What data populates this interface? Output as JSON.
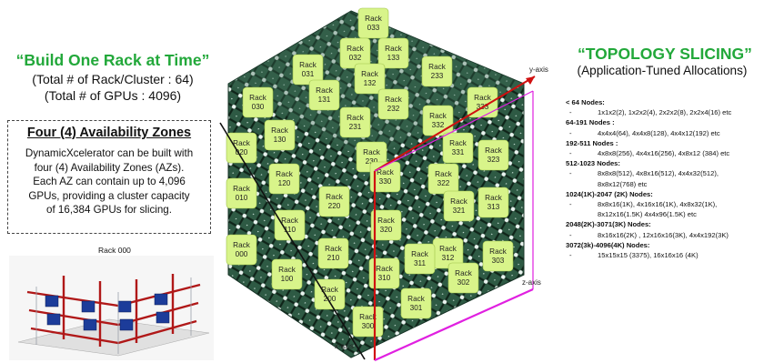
{
  "left": {
    "title": "“Build One Rack at Time”",
    "total_racks": "(Total # of Rack/Cluster : 64)",
    "total_gpus": "(Total # of GPUs : 4096)"
  },
  "az": {
    "title": "Four (4) Availability Zones",
    "lines": [
      "DynamicXcelerator can be built with",
      "four (4) Availability Zones (AZs).",
      "Each AZ can contain up to 4,096",
      "GPUs, providing a cluster capacity",
      "of 16,384 GPUs for slicing."
    ]
  },
  "rack_caption": "Rack 000",
  "right": {
    "title": "“TOPOLOGY SLICING”",
    "subtitle": "(Application-Tuned Allocations)"
  },
  "topology": [
    {
      "category": "< 64 Nodes:",
      "values": [
        "1x1x2(2), 1x2x2(4), 2x2x2(8), 2x2x4(16) etc"
      ]
    },
    {
      "category": "64-191 Nodes :",
      "values": [
        "4x4x4(64), 4x4x8(128), 4x4x12(192) etc"
      ]
    },
    {
      "category": "192-511  Nodes :",
      "values": [
        "4x8x8(256), 4x4x16(256), 4x8x12 (384) etc"
      ]
    },
    {
      "category": "512-1023 Nodes:",
      "values": [
        "8x8x8(512), 4x8x16(512), 4x4x32(512),",
        "8x8x12(768) etc"
      ]
    },
    {
      "category": "1024(1K)-2047 (2K) Nodes:",
      "values": [
        "8x8x16(1K), 4x16x16(1K), 4x8x32(1K),",
        "8x12x16(1.5K) 4x4x96(1.5K) etc"
      ]
    },
    {
      "category": "2048(2K)-3071(3K) Nodes:",
      "values": [
        "8x16x16(2K) , 12x16x16(3K), 4x4x192(3K)"
      ]
    },
    {
      "category": "3072(3k)-4096(4K) Nodes:",
      "values": [
        "15x15x15 (3375), 16x16x16 (4K)"
      ]
    }
  ],
  "axes": {
    "x": "x-axis",
    "y": "y-axis",
    "z": "z-axis"
  },
  "racks": [
    {
      "label": "Rack",
      "id": "033"
    },
    {
      "label": "Rack",
      "id": "032"
    },
    {
      "label": "Rack",
      "id": "133"
    },
    {
      "label": "Rack",
      "id": "031"
    },
    {
      "label": "Rack",
      "id": "132"
    },
    {
      "label": "Rack",
      "id": "233"
    },
    {
      "label": "Rack",
      "id": "030"
    },
    {
      "label": "Rack",
      "id": "131"
    },
    {
      "label": "Rack",
      "id": "232"
    },
    {
      "label": "Rack",
      "id": "333"
    },
    {
      "label": "Rack",
      "id": "130"
    },
    {
      "label": "Rack",
      "id": "231"
    },
    {
      "label": "Rack",
      "id": "332"
    },
    {
      "label": "Rack",
      "id": "020"
    },
    {
      "label": "Rack",
      "id": "230"
    },
    {
      "label": "Rack",
      "id": "331"
    },
    {
      "label": "Rack",
      "id": "323"
    },
    {
      "label": "Rack",
      "id": "120"
    },
    {
      "label": "Rack",
      "id": "330"
    },
    {
      "label": "Rack",
      "id": "322"
    },
    {
      "label": "Rack",
      "id": "010"
    },
    {
      "label": "Rack",
      "id": "220"
    },
    {
      "label": "Rack",
      "id": "321"
    },
    {
      "label": "Rack",
      "id": "313"
    },
    {
      "label": "Rack",
      "id": "110"
    },
    {
      "label": "Rack",
      "id": "320"
    },
    {
      "label": "Rack",
      "id": "312"
    },
    {
      "label": "Rack",
      "id": "000"
    },
    {
      "label": "Rack",
      "id": "210"
    },
    {
      "label": "Rack",
      "id": "311"
    },
    {
      "label": "Rack",
      "id": "303"
    },
    {
      "label": "Rack",
      "id": "100"
    },
    {
      "label": "Rack",
      "id": "310"
    },
    {
      "label": "Rack",
      "id": "302"
    },
    {
      "label": "Rack",
      "id": "200"
    },
    {
      "label": "Rack",
      "id": "301"
    },
    {
      "label": "Rack",
      "id": "300"
    }
  ],
  "colors": {
    "accent_green": "#22a83a",
    "rack_fill": "#d8f48a",
    "mesh_dark": "#1f4030",
    "y_axis": "#d01010",
    "z_axis": "#e020e0",
    "x_axis": "#111111"
  }
}
